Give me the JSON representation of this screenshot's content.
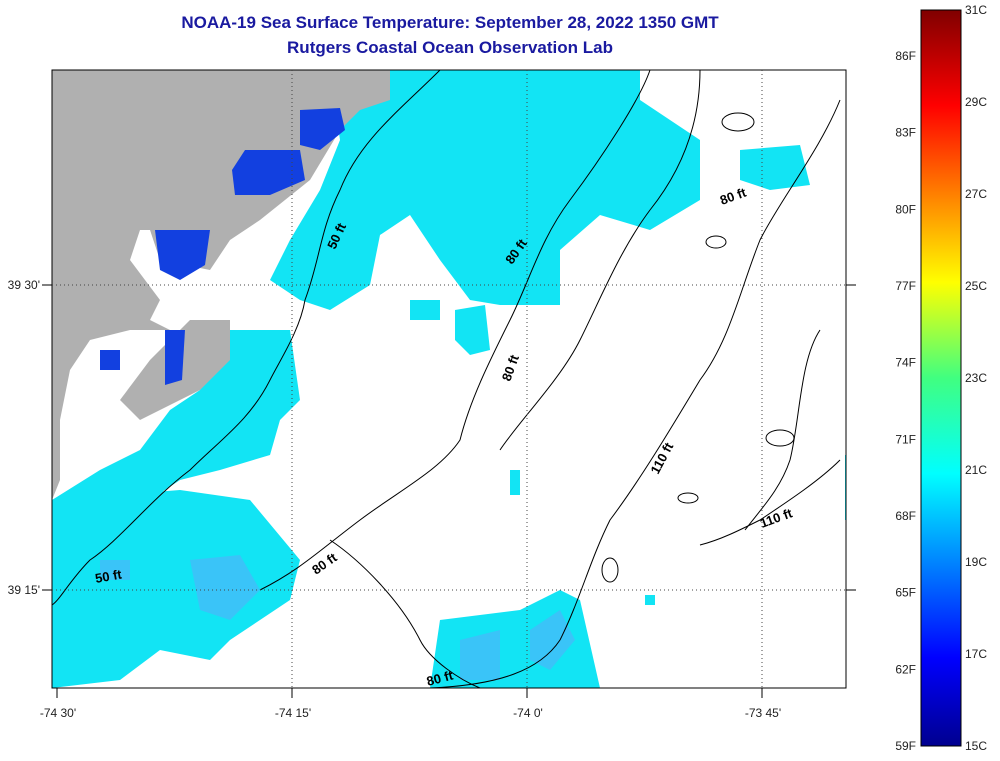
{
  "header": {
    "title": "NOAA-19 Sea Surface Temperature:  September 28, 2022 1350 GMT",
    "subtitle": "Rutgers Coastal Ocean Observation Lab"
  },
  "axes": {
    "x_ticks": [
      {
        "label": "-74 30'",
        "lon": -74.5
      },
      {
        "label": "-74 15'",
        "lon": -74.25
      },
      {
        "label": "-74 0'",
        "lon": -74.0
      },
      {
        "label": "-73 45'",
        "lon": -73.75
      }
    ],
    "y_ticks": [
      {
        "label": "39 30'",
        "lat": 39.5
      },
      {
        "label": "39 15'",
        "lat": 39.25
      }
    ]
  },
  "contour_labels": {
    "c50a": "50 ft",
    "c50b": "50 ft",
    "c80a": "80 ft",
    "c80b": "80 ft",
    "c80c": "80 ft",
    "c80d": "80 ft",
    "c80e": "80 ft",
    "c110a": "110 ft",
    "c110b": "110 ft"
  },
  "colorbar": {
    "fahrenheit": [
      "86F",
      "83F",
      "80F",
      "77F",
      "74F",
      "71F",
      "68F",
      "65F",
      "62F",
      "59F"
    ],
    "celsius": [
      "31C",
      "29C",
      "27C",
      "25C",
      "23C",
      "21C",
      "19C",
      "17C",
      "15C"
    ],
    "range_c": [
      15,
      31
    ]
  },
  "colors": {
    "land": "#b0b0b0",
    "sst_cyan": "#12e4f4",
    "sst_light": "#3ac4f8",
    "sst_blue": "#1240e0",
    "title": "#1a1aa0"
  }
}
